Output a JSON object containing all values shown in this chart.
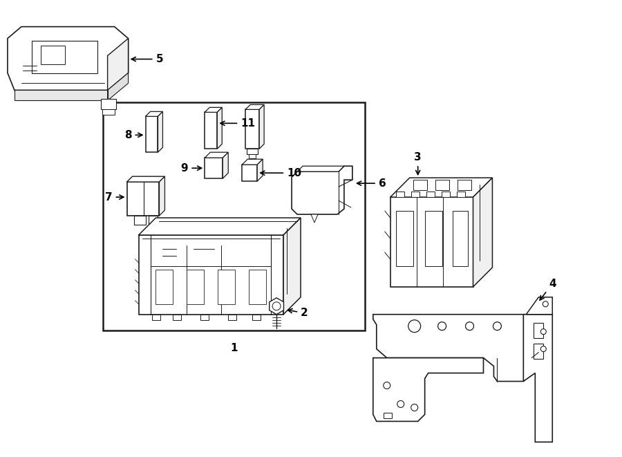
{
  "background_color": "#ffffff",
  "line_color": "#1a1a1a",
  "lw": 1.0,
  "fig_width": 9.0,
  "fig_height": 6.61,
  "dpi": 100
}
